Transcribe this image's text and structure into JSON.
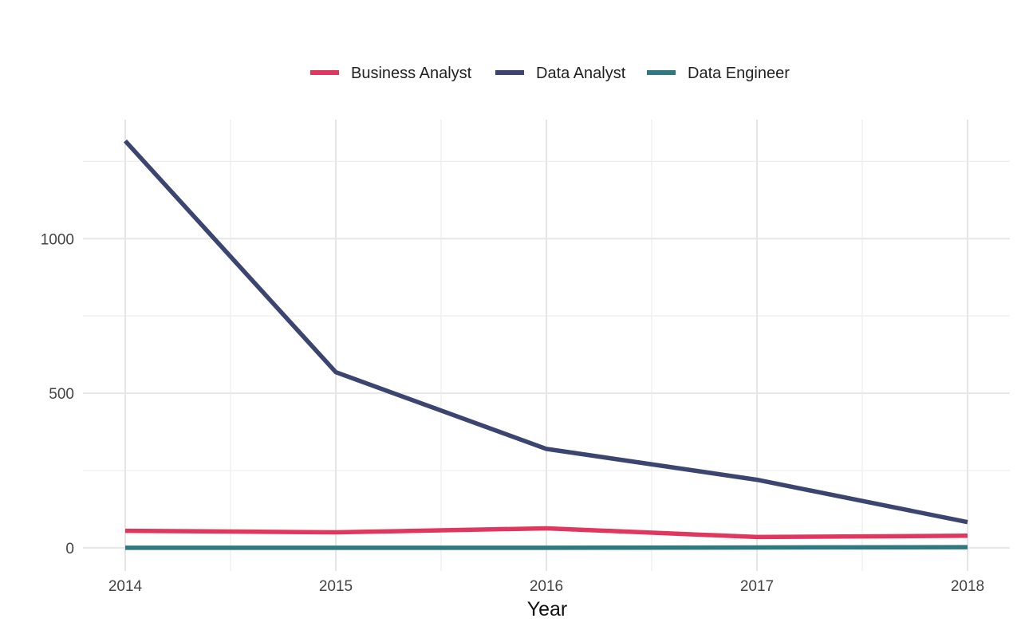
{
  "chart_data": {
    "type": "line",
    "title": "",
    "xlabel": "Year",
    "ylabel": "",
    "x": [
      2014,
      2015,
      2016,
      2017,
      2018
    ],
    "x_ticks": [
      "2014",
      "2015",
      "2016",
      "2017",
      "2018"
    ],
    "y_ticks": [
      "0",
      "500",
      "1000"
    ],
    "y_tick_values": [
      0,
      500,
      1000
    ],
    "xlim": [
      2014,
      2018
    ],
    "ylim": [
      -75,
      1385
    ],
    "grid": true,
    "legend_position": "top",
    "series": [
      {
        "name": "Business Analyst",
        "color": "#e0375f",
        "values": [
          55,
          50,
          63,
          35,
          39
        ]
      },
      {
        "name": "Data Analyst",
        "color": "#3b4570",
        "values": [
          1316,
          568,
          320,
          220,
          83
        ]
      },
      {
        "name": "Data Engineer",
        "color": "#2f7a80",
        "values": [
          0,
          0,
          0,
          1,
          2
        ]
      }
    ]
  }
}
